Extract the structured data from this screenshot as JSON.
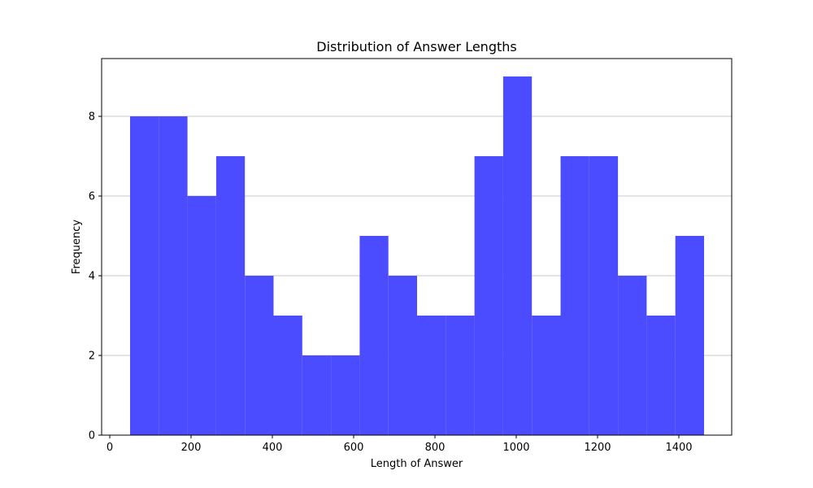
{
  "chart_data": {
    "type": "bar",
    "title": "Distribution of Answer Lengths",
    "xlabel": "Length of Answer",
    "ylabel": "Frequency",
    "xlim": [
      -20,
      1530
    ],
    "ylim": [
      0,
      9.45
    ],
    "xticks": [
      0,
      200,
      400,
      600,
      800,
      1000,
      1200,
      1400
    ],
    "yticks": [
      0,
      2,
      4,
      6,
      8
    ],
    "grid": "y",
    "bar_color": "#4b4bff",
    "bins": [
      {
        "x0": 50,
        "x1": 120.6,
        "count": 8
      },
      {
        "x0": 120.6,
        "x1": 191.2,
        "count": 8
      },
      {
        "x0": 191.2,
        "x1": 261.8,
        "count": 6
      },
      {
        "x0": 261.8,
        "x1": 332.4,
        "count": 7
      },
      {
        "x0": 332.4,
        "x1": 403.0,
        "count": 4
      },
      {
        "x0": 403.0,
        "x1": 473.6,
        "count": 3
      },
      {
        "x0": 473.6,
        "x1": 544.2,
        "count": 2
      },
      {
        "x0": 544.2,
        "x1": 614.8,
        "count": 2
      },
      {
        "x0": 614.8,
        "x1": 685.4,
        "count": 5
      },
      {
        "x0": 685.4,
        "x1": 756.0,
        "count": 4
      },
      {
        "x0": 756.0,
        "x1": 826.6,
        "count": 3
      },
      {
        "x0": 826.6,
        "x1": 897.2,
        "count": 3
      },
      {
        "x0": 897.2,
        "x1": 967.8,
        "count": 7
      },
      {
        "x0": 967.8,
        "x1": 1038.4,
        "count": 9
      },
      {
        "x0": 1038.4,
        "x1": 1109.0,
        "count": 3
      },
      {
        "x0": 1109.0,
        "x1": 1179.6,
        "count": 7
      },
      {
        "x0": 1179.6,
        "x1": 1250.2,
        "count": 7
      },
      {
        "x0": 1250.2,
        "x1": 1320.8,
        "count": 4
      },
      {
        "x0": 1320.8,
        "x1": 1391.4,
        "count": 3
      },
      {
        "x0": 1391.4,
        "x1": 1462.0,
        "count": 5
      }
    ]
  }
}
